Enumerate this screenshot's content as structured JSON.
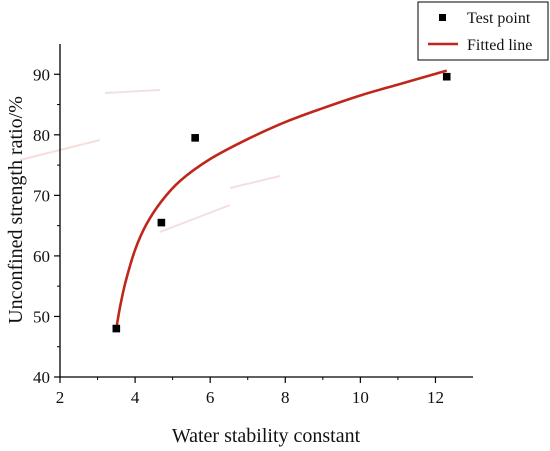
{
  "chart_data": {
    "type": "scatter",
    "title": "",
    "xlabel": "Water stability constant",
    "ylabel": "Unconfined strength ratio/%",
    "xlim": [
      2,
      13
    ],
    "ylim": [
      40,
      95
    ],
    "xticks": [
      2,
      4,
      6,
      8,
      10,
      12
    ],
    "yticks": [
      40,
      50,
      60,
      70,
      80,
      90
    ],
    "grid": false,
    "legend_position": "top-right",
    "series": [
      {
        "name": "Test point",
        "kind": "scatter",
        "marker": "square",
        "color": "#000000",
        "points": [
          {
            "x": 3.5,
            "y": 48.0
          },
          {
            "x": 4.7,
            "y": 65.5
          },
          {
            "x": 5.6,
            "y": 79.5
          },
          {
            "x": 12.3,
            "y": 89.6
          }
        ]
      },
      {
        "name": "Fitted line",
        "kind": "line",
        "color": "#c0271c",
        "points": [
          {
            "x": 3.5,
            "y": 48.0
          },
          {
            "x": 3.6,
            "y": 51.6
          },
          {
            "x": 3.75,
            "y": 55.8
          },
          {
            "x": 4.0,
            "y": 61.0
          },
          {
            "x": 4.3,
            "y": 65.2
          },
          {
            "x": 4.7,
            "y": 69.0
          },
          {
            "x": 5.2,
            "y": 72.4
          },
          {
            "x": 6.0,
            "y": 76.0
          },
          {
            "x": 7.0,
            "y": 79.3
          },
          {
            "x": 8.0,
            "y": 82.1
          },
          {
            "x": 9.0,
            "y": 84.4
          },
          {
            "x": 10.0,
            "y": 86.5
          },
          {
            "x": 11.0,
            "y": 88.3
          },
          {
            "x": 12.3,
            "y": 90.6
          }
        ]
      }
    ]
  }
}
